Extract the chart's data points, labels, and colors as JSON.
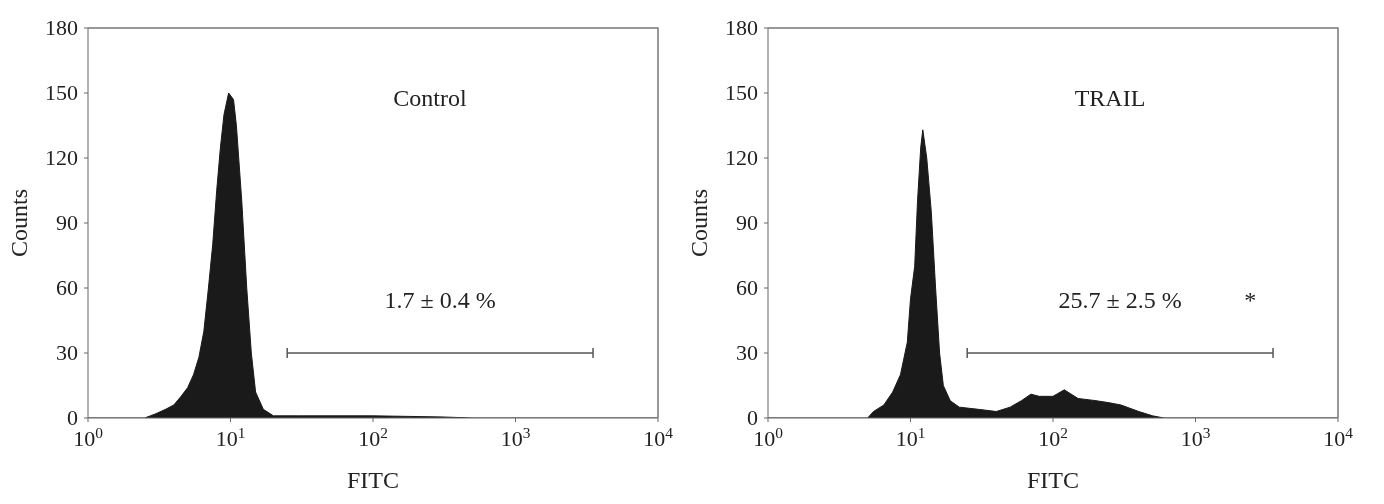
{
  "chart_data": [
    {
      "type": "area",
      "title": "Control",
      "xlabel": "FITC",
      "ylabel": "Counts",
      "log": "x",
      "grid": false,
      "legend": false,
      "series": [
        {
          "type": "area",
          "color": "#1a1a1a",
          "x": [
            1,
            2.5,
            3,
            3.5,
            4,
            4.5,
            5,
            5.5,
            6,
            6.5,
            7,
            7.5,
            8,
            8.5,
            9,
            9.7,
            10.5,
            11,
            12,
            13,
            14,
            15,
            17,
            20,
            30,
            100,
            300,
            500,
            10000
          ],
          "values": [
            0,
            0,
            2,
            4,
            6,
            10,
            14,
            20,
            28,
            40,
            60,
            80,
            105,
            125,
            140,
            150,
            147,
            135,
            100,
            60,
            30,
            12,
            4,
            1,
            1,
            1,
            0.5,
            0,
            0
          ]
        },
        {
          "type": "line",
          "color": "#555555",
          "x": [
            25,
            3500
          ],
          "values": [
            30,
            30
          ]
        }
      ],
      "xlim": [
        1,
        10000
      ],
      "xticks": [
        {
          "value": 1,
          "label": "10$^{0}$"
        },
        {
          "value": 10,
          "label": "10$^{1}$"
        },
        {
          "value": 100,
          "label": "10$^{2}$"
        },
        {
          "value": 1000,
          "label": "10$^{3}$"
        },
        {
          "value": 10000,
          "label": "10$^{4}$"
        }
      ],
      "ylim": [
        0,
        180
      ],
      "yticks": [
        0,
        30,
        60,
        90,
        120,
        150,
        180
      ],
      "annotations": [
        {
          "text": "1.7 ± 0.4 %",
          "x": 296,
          "y": 30
        }
      ]
    },
    {
      "type": "area",
      "title": "TRAIL",
      "xlabel": "FITC",
      "ylabel": "Counts",
      "log": "x",
      "grid": false,
      "legend": false,
      "series": [
        {
          "type": "area",
          "color": "#1a1a1a",
          "x": [
            1,
            5,
            5.5,
            6.5,
            7.5,
            8.5,
            9.5,
            10,
            10.7,
            11.2,
            11.8,
            12.2,
            13,
            14,
            15,
            16,
            17,
            19,
            22,
            30,
            40,
            50,
            60,
            70,
            80,
            100,
            120,
            150,
            200,
            250,
            300,
            400,
            500,
            600,
            10000
          ],
          "values": [
            0,
            0,
            3,
            6,
            12,
            20,
            35,
            55,
            70,
            100,
            125,
            133,
            120,
            95,
            60,
            30,
            15,
            8,
            5,
            4,
            3,
            5,
            8,
            11,
            10,
            10,
            13,
            9,
            8,
            7,
            6,
            3,
            1,
            0,
            0
          ]
        },
        {
          "type": "line",
          "color": "#555555",
          "x": [
            25,
            3500
          ],
          "values": [
            30,
            30
          ]
        }
      ],
      "xlim": [
        1,
        10000
      ],
      "xticks": [
        {
          "value": 1,
          "label": "10$^{0}$"
        },
        {
          "value": 10,
          "label": "10$^{1}$"
        },
        {
          "value": 100,
          "label": "10$^{2}$"
        },
        {
          "value": 1000,
          "label": "10$^{3}$"
        },
        {
          "value": 10000,
          "label": "10$^{4}$"
        }
      ],
      "ylim": [
        0,
        180
      ],
      "yticks": [
        0,
        30,
        60,
        90,
        120,
        150,
        180
      ],
      "annotations": [
        {
          "text": "25.7 ± 2.5 %",
          "x": 296,
          "y": 30
        },
        "*"
      ]
    }
  ]
}
